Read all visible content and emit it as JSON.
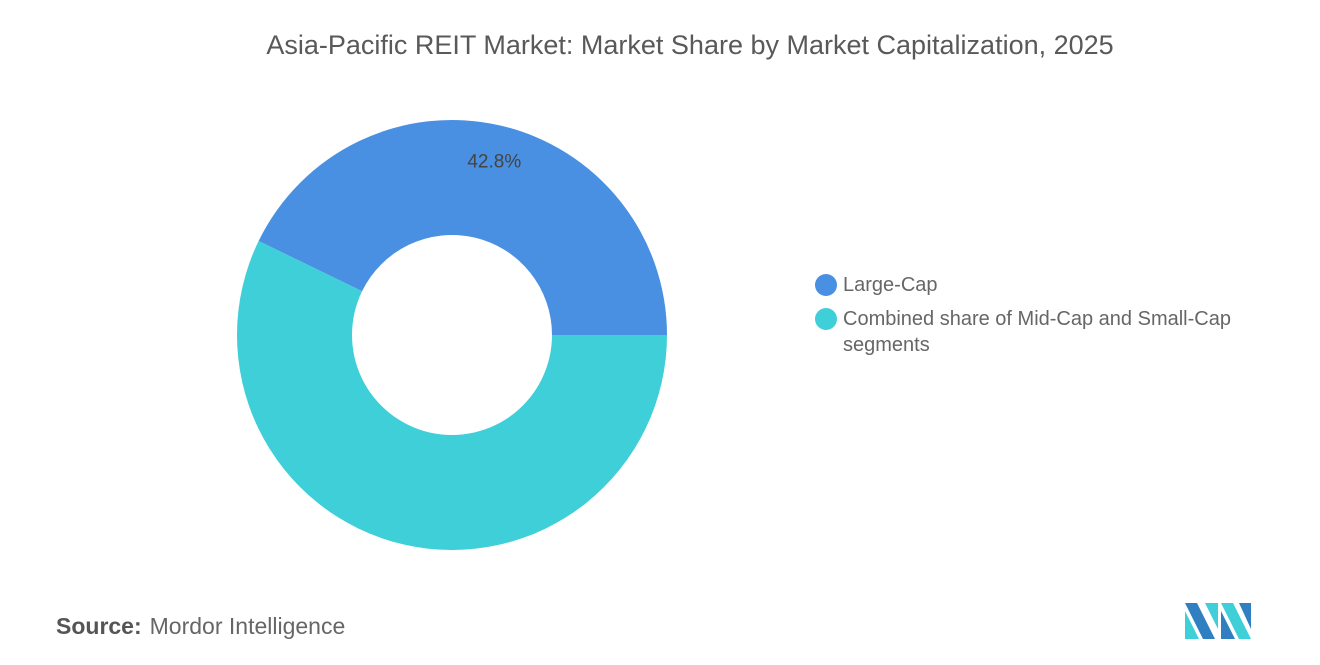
{
  "chart_data": {
    "type": "pie",
    "subtype": "donut",
    "title": "Asia-Pacific REIT Market: Market Share by Market Capitalization, 2025",
    "slices": [
      {
        "name": "Large-Cap",
        "value": 42.8,
        "label": "42.8%",
        "color": "#4a90e2"
      },
      {
        "name": "Combined share of Mid-Cap and Small-Cap segments",
        "value": 57.2,
        "label": "",
        "color": "#3ecfd9"
      }
    ],
    "legend_position": "right"
  },
  "source": {
    "label": "Source:",
    "value": "Mordor Intelligence"
  },
  "logo_text": "Mordor Intelligence"
}
